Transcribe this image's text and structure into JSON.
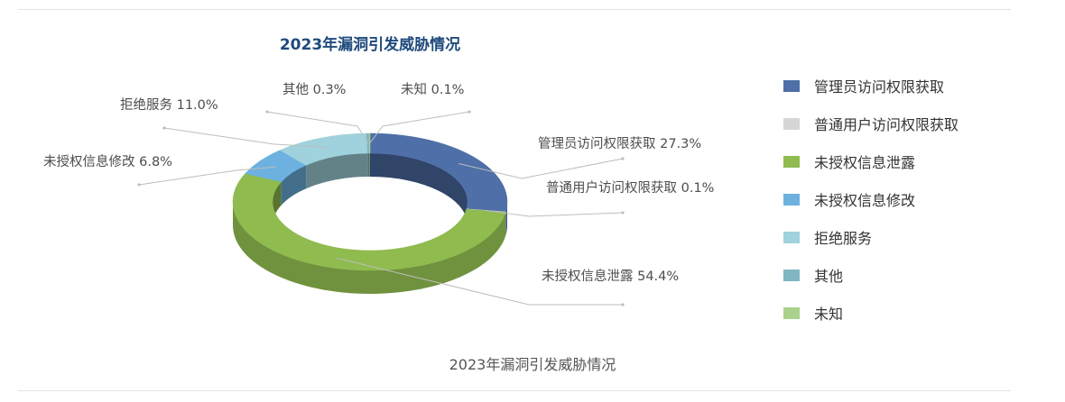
{
  "chart_data": {
    "type": "pie",
    "title": "2023年漏洞引发威胁情况",
    "caption": "2023年漏洞引发威胁情况",
    "style": "3d-donut",
    "legend_position": "right",
    "slices": [
      {
        "label": "管理员访问权限获取",
        "value": 27.3,
        "display": "27.3%",
        "color": "#4e6fa8"
      },
      {
        "label": "普通用户访问权限获取",
        "value": 0.1,
        "display": "0.1%",
        "color": "#d6d6d6"
      },
      {
        "label": "未授权信息泄露",
        "value": 54.4,
        "display": "54.4%",
        "color": "#8fbb4f"
      },
      {
        "label": "未授权信息修改",
        "value": 6.8,
        "display": "6.8%",
        "color": "#6cb1df"
      },
      {
        "label": "拒绝服务",
        "value": 11.0,
        "display": "11.0%",
        "color": "#9fd2dc"
      },
      {
        "label": "其他",
        "value": 0.3,
        "display": "0.3%",
        "color": "#7fb6c1"
      },
      {
        "label": "未知",
        "value": 0.1,
        "display": "0.1%",
        "color": "#aad28c"
      }
    ]
  }
}
